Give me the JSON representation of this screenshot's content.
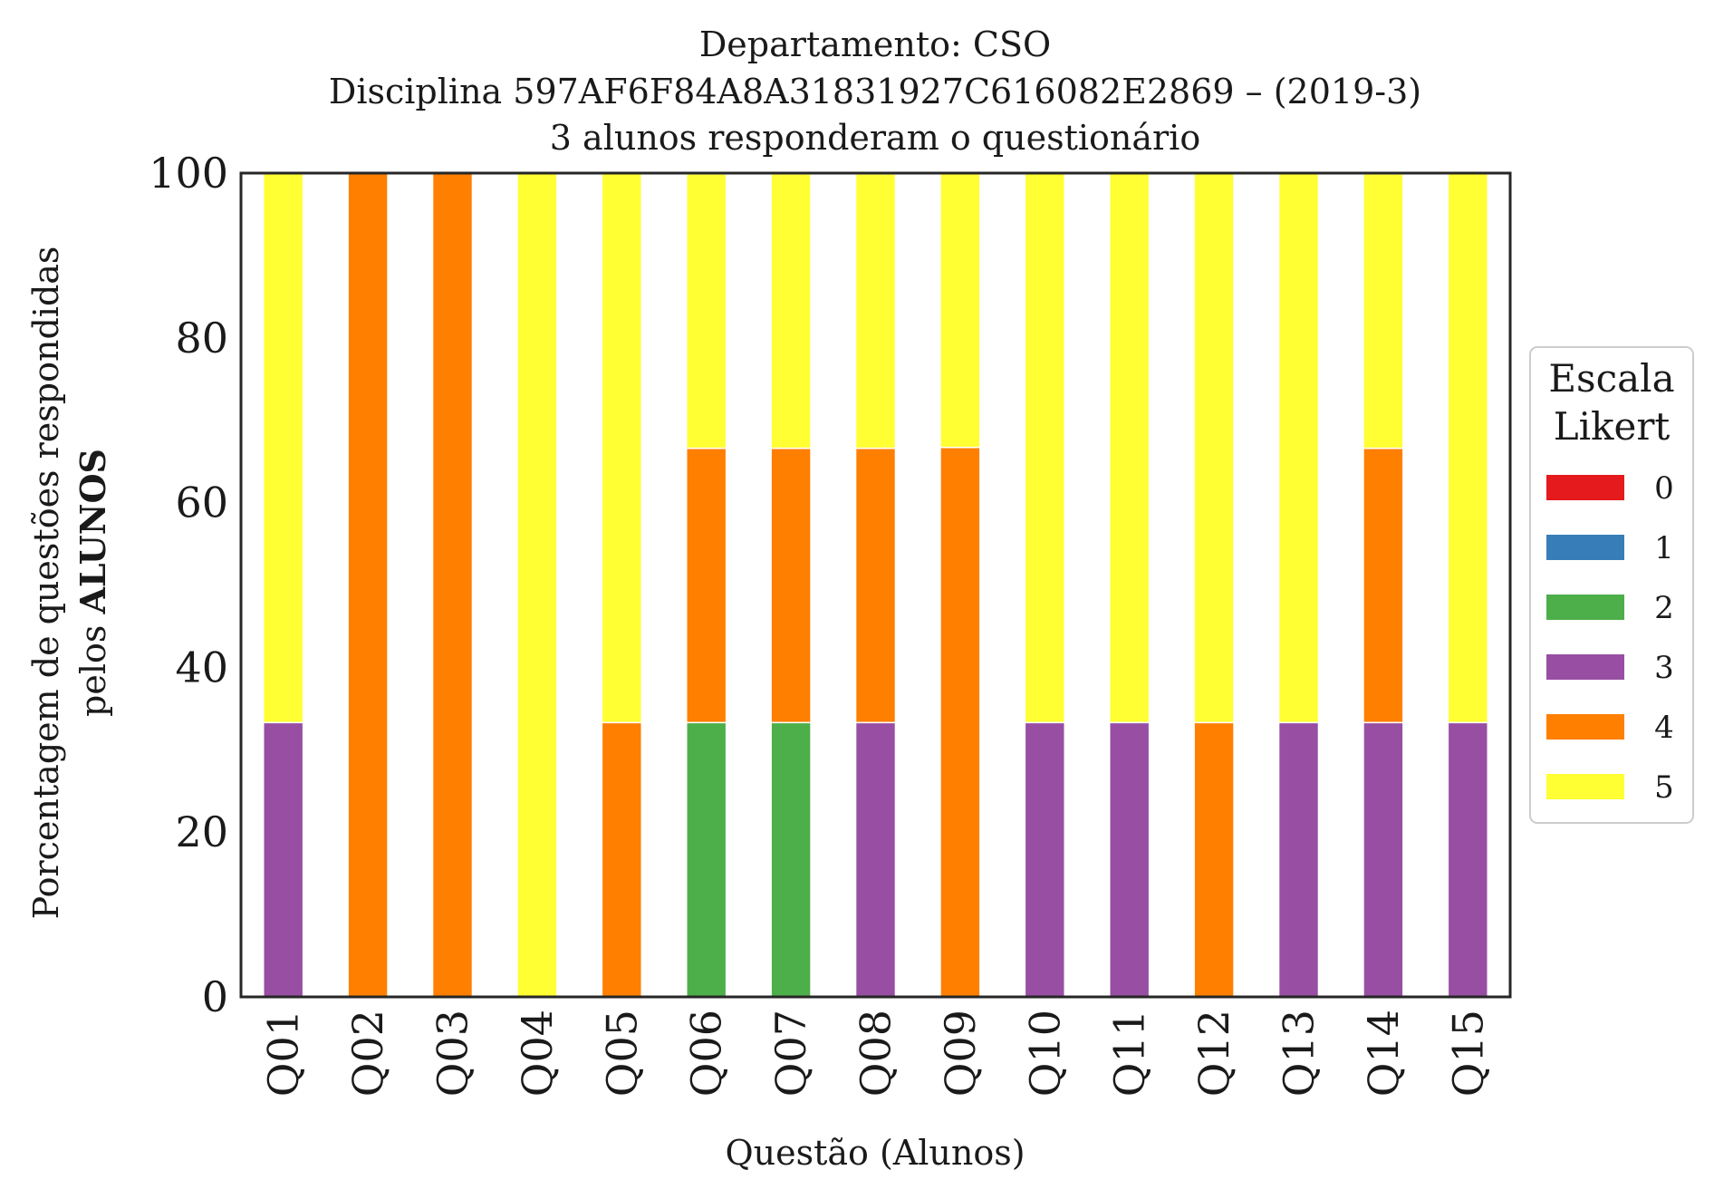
{
  "chart_data": {
    "type": "bar",
    "stacked": true,
    "title_lines": [
      "Departamento: CSO",
      "Disciplina 597AF6F84A8A31831927C616082E2869 – (2019-3)",
      "3 alunos responderam o questionário"
    ],
    "xlabel": "Questão (Alunos)",
    "ylabel_line1": "Porcentagem de questões respondidas",
    "ylabel_line2_prefix": "pelos ",
    "ylabel_line2_bold": "ALUNOS",
    "ylim": [
      0,
      100
    ],
    "yticks": [
      0,
      20,
      40,
      60,
      80,
      100
    ],
    "ytick_labels": [
      "0",
      "20",
      "40",
      "60",
      "80",
      "100"
    ],
    "categories": [
      "Q01",
      "Q02",
      "Q03",
      "Q04",
      "Q05",
      "Q06",
      "Q07",
      "Q08",
      "Q09",
      "Q10",
      "Q11",
      "Q12",
      "Q13",
      "Q14",
      "Q15"
    ],
    "legend_title_lines": [
      "Escala",
      "Likert"
    ],
    "legend_position": "center-right",
    "series": [
      {
        "name": "0",
        "color": "#e41a1c",
        "values": [
          0,
          0,
          0,
          0,
          0,
          0,
          0,
          0,
          0,
          0,
          0,
          0,
          0,
          0,
          0
        ]
      },
      {
        "name": "1",
        "color": "#377eb8",
        "values": [
          0,
          0,
          0,
          0,
          0,
          0,
          0,
          0,
          0,
          0,
          0,
          0,
          0,
          0,
          0
        ]
      },
      {
        "name": "2",
        "color": "#4daf4a",
        "values": [
          0,
          0,
          0,
          0,
          0,
          33.3,
          33.3,
          0,
          0,
          0,
          0,
          0,
          0,
          0,
          0
        ]
      },
      {
        "name": "3",
        "color": "#984ea3",
        "values": [
          33.3,
          0,
          0,
          0,
          0,
          0,
          0,
          33.3,
          0,
          33.3,
          33.3,
          0,
          33.3,
          33.3,
          33.3
        ]
      },
      {
        "name": "4",
        "color": "#ff7f00",
        "values": [
          0,
          100,
          100,
          0,
          33.3,
          33.3,
          33.3,
          33.3,
          66.7,
          0,
          0,
          33.3,
          0,
          33.3,
          0
        ]
      },
      {
        "name": "5",
        "color": "#ffff33",
        "values": [
          66.7,
          0,
          0,
          100,
          66.7,
          33.3,
          33.3,
          33.3,
          33.3,
          66.7,
          66.7,
          66.7,
          66.7,
          33.3,
          66.7
        ]
      }
    ]
  }
}
